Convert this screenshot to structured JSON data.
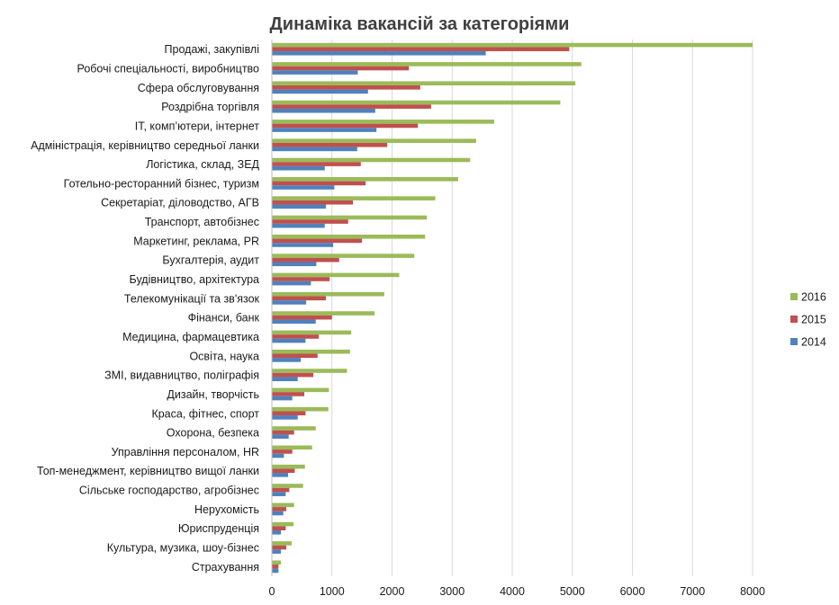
{
  "chart_data": {
    "type": "bar",
    "orientation": "horizontal",
    "title": "Динаміка вакансій за категоріями",
    "xlim": [
      0,
      8000
    ],
    "xticks": [
      0,
      1000,
      2000,
      3000,
      4000,
      5000,
      6000,
      7000,
      8000
    ],
    "grid": true,
    "legend_position": "right",
    "categories": [
      "Продажі, закупівлі",
      "Робочі спеціальності, виробництво",
      "Сфера обслуговування",
      "Роздрібна торгівля",
      "ІТ, комп’ютери, інтернет",
      "Адміністрація, керівництво середньої ланки",
      "Логістика, склад, ЗЕД",
      "Готельно-ресторанний бізнес, туризм",
      "Секретаріат, діловодство, АГВ",
      "Транспорт, автобізнес",
      "Маркетинг, реклама, PR",
      "Бухгалтерія, аудит",
      "Будівництво, архітектура",
      "Телекомунікації та зв'язок",
      "Фінанси, банк",
      "Медицина, фармацевтика",
      "Освіта, наука",
      "ЗМІ, видавництво, поліграфія",
      "Дизайн, творчість",
      "Краса, фітнес, спорт",
      "Охорона, безпека",
      "Управління персоналом, HR",
      "Топ-менеджмент, керівництво вищої ланки",
      "Сільське господарство, агробізнес",
      "Нерухомість",
      "Юриспруденція",
      "Культура, музика, шоу-бізнес",
      "Страхування"
    ],
    "series": [
      {
        "name": "2016",
        "color": "#9bbb59",
        "values": [
          8000,
          5150,
          5050,
          4800,
          3700,
          3400,
          3300,
          3100,
          2720,
          2580,
          2550,
          2370,
          2120,
          1870,
          1710,
          1320,
          1300,
          1250,
          950,
          940,
          730,
          670,
          550,
          520,
          370,
          360,
          330,
          150
        ]
      },
      {
        "name": "2015",
        "color": "#c0504d",
        "values": [
          4950,
          2280,
          2470,
          2650,
          2430,
          1920,
          1480,
          1560,
          1350,
          1270,
          1500,
          1120,
          960,
          900,
          1000,
          780,
          760,
          690,
          540,
          560,
          370,
          340,
          380,
          290,
          240,
          230,
          240,
          110
        ]
      },
      {
        "name": "2014",
        "color": "#4f81bd",
        "values": [
          3560,
          1430,
          1600,
          1720,
          1740,
          1420,
          880,
          1040,
          900,
          880,
          1020,
          740,
          650,
          570,
          730,
          560,
          480,
          430,
          340,
          430,
          280,
          200,
          270,
          230,
          190,
          150,
          150,
          110
        ]
      }
    ]
  }
}
